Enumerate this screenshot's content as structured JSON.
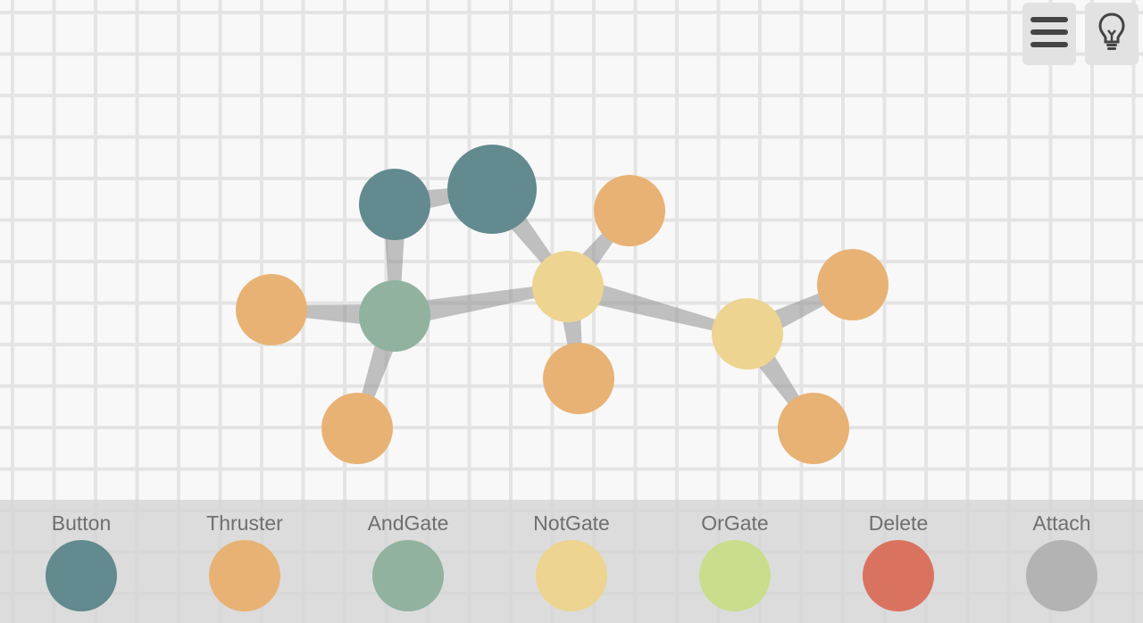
{
  "colors": {
    "button": "#638a8e",
    "thruster": "#e8b274",
    "andgate": "#90b29e",
    "notgate": "#edd490",
    "orgate": "#c9dd8c",
    "delete": "#d9735f",
    "attach": "#b3b3b3",
    "link": "#909090"
  },
  "toolbar": {
    "menu_icon": "hamburger-menu-icon",
    "hint_icon": "lightbulb-icon"
  },
  "palette": {
    "tools": [
      {
        "label": "Button",
        "type": "button",
        "color": "#638a8e"
      },
      {
        "label": "Thruster",
        "type": "thruster",
        "color": "#e8b274"
      },
      {
        "label": "AndGate",
        "type": "andgate",
        "color": "#90b29e"
      },
      {
        "label": "NotGate",
        "type": "notgate",
        "color": "#edd490"
      },
      {
        "label": "OrGate",
        "type": "orgate",
        "color": "#c9dd8c"
      },
      {
        "label": "Delete",
        "type": "delete",
        "color": "#d9735f"
      },
      {
        "label": "Attach",
        "type": "attach",
        "color": "#b3b3b3"
      }
    ]
  },
  "machine": {
    "nodes": [
      {
        "id": "b1",
        "type": "button"
      },
      {
        "id": "b2",
        "type": "button"
      },
      {
        "id": "and1",
        "type": "andgate"
      },
      {
        "id": "not1",
        "type": "notgate"
      },
      {
        "id": "not2",
        "type": "notgate"
      },
      {
        "id": "t1",
        "type": "thruster"
      },
      {
        "id": "t2",
        "type": "thruster"
      },
      {
        "id": "t3",
        "type": "thruster"
      },
      {
        "id": "t4",
        "type": "thruster"
      },
      {
        "id": "t5",
        "type": "thruster"
      },
      {
        "id": "t6",
        "type": "thruster"
      }
    ],
    "links": [
      {
        "from": "b1",
        "to": "b2"
      },
      {
        "from": "b1",
        "to": "and1"
      },
      {
        "from": "b2",
        "to": "not1"
      },
      {
        "from": "and1",
        "to": "t1"
      },
      {
        "from": "and1",
        "to": "t2"
      },
      {
        "from": "and1",
        "to": "not1"
      },
      {
        "from": "not1",
        "to": "t3"
      },
      {
        "from": "not1",
        "to": "t4"
      },
      {
        "from": "not1",
        "to": "not2"
      },
      {
        "from": "not2",
        "to": "t5"
      },
      {
        "from": "not2",
        "to": "t6"
      }
    ]
  }
}
